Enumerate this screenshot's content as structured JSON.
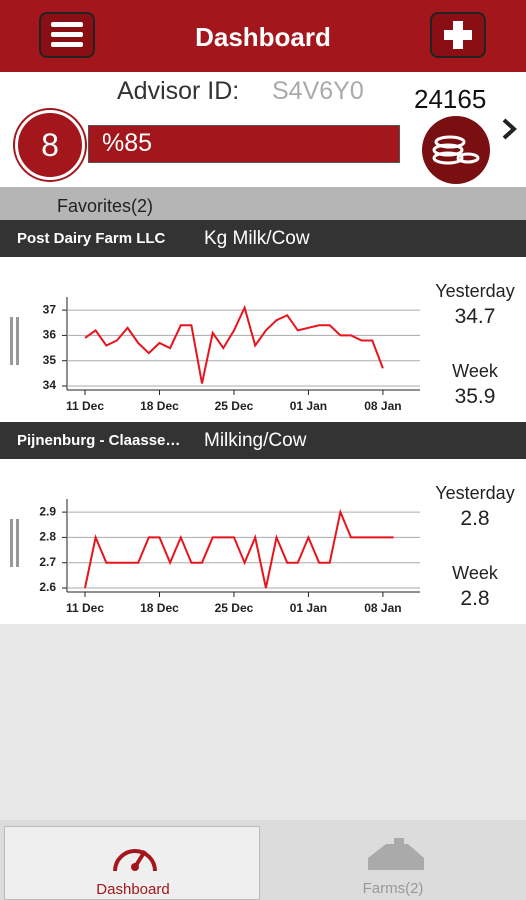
{
  "header": {
    "title": "Dashboard"
  },
  "advisor": {
    "label": "Advisor ID:",
    "id": "S4V6Y0",
    "level": "8",
    "progress_label": "%85",
    "points": "24165"
  },
  "favorites": {
    "title": "Favorites(2)"
  },
  "farms": [
    {
      "name": "Post Dairy Farm LLC",
      "metric": "Kg Milk/Cow",
      "chart": {
        "type": "line",
        "color": "#e8141c",
        "categories": [
          "11 Dec",
          null,
          null,
          null,
          null,
          null,
          null,
          "18 Dec",
          null,
          null,
          null,
          null,
          null,
          null,
          "25 Dec",
          null,
          null,
          null,
          null,
          null,
          null,
          "01 Jan",
          null,
          null,
          null,
          null,
          null,
          null,
          "08 Jan"
        ],
        "values": [
          35.9,
          36.2,
          35.6,
          35.8,
          36.3,
          35.7,
          35.3,
          35.7,
          35.5,
          36.4,
          36.4,
          34.1,
          36.1,
          35.5,
          36.2,
          37.1,
          35.6,
          36.2,
          36.6,
          36.8,
          36.2,
          36.3,
          36.4,
          36.4,
          36.0,
          36.0,
          35.8,
          35.8,
          34.7
        ],
        "ylim": [
          34,
          37.4
        ],
        "yticks": [
          34,
          35,
          36,
          37
        ],
        "grid": true
      },
      "stats": [
        {
          "label": "Yesterday",
          "value": "34.7"
        },
        {
          "label": "Week",
          "value": "35.9"
        }
      ]
    },
    {
      "name": "Pijnenburg - Claasse…",
      "metric": "Milking/Cow",
      "chart": {
        "type": "line",
        "color": "#e8141c",
        "categories": [
          "11 Dec",
          null,
          null,
          null,
          null,
          null,
          null,
          "18 Dec",
          null,
          null,
          null,
          null,
          null,
          null,
          "25 Dec",
          null,
          null,
          null,
          null,
          null,
          null,
          "01 Jan",
          null,
          null,
          null,
          null,
          null,
          null,
          "08 Jan",
          null
        ],
        "values": [
          2.6,
          2.8,
          2.7,
          2.7,
          2.7,
          2.7,
          2.8,
          2.8,
          2.7,
          2.8,
          2.7,
          2.7,
          2.8,
          2.8,
          2.8,
          2.7,
          2.8,
          2.6,
          2.8,
          2.7,
          2.7,
          2.8,
          2.7,
          2.7,
          2.9,
          2.8,
          2.8,
          2.8,
          2.8,
          2.8
        ],
        "ylim": [
          2.6,
          2.94
        ],
        "yticks": [
          2.6,
          2.7,
          2.8,
          2.9
        ],
        "grid": true
      },
      "stats": [
        {
          "label": "Yesterday",
          "value": "2.8"
        },
        {
          "label": "Week",
          "value": "2.8"
        }
      ]
    }
  ],
  "tabs": [
    {
      "label": "Dashboard"
    },
    {
      "label": "Farms(2)"
    }
  ]
}
